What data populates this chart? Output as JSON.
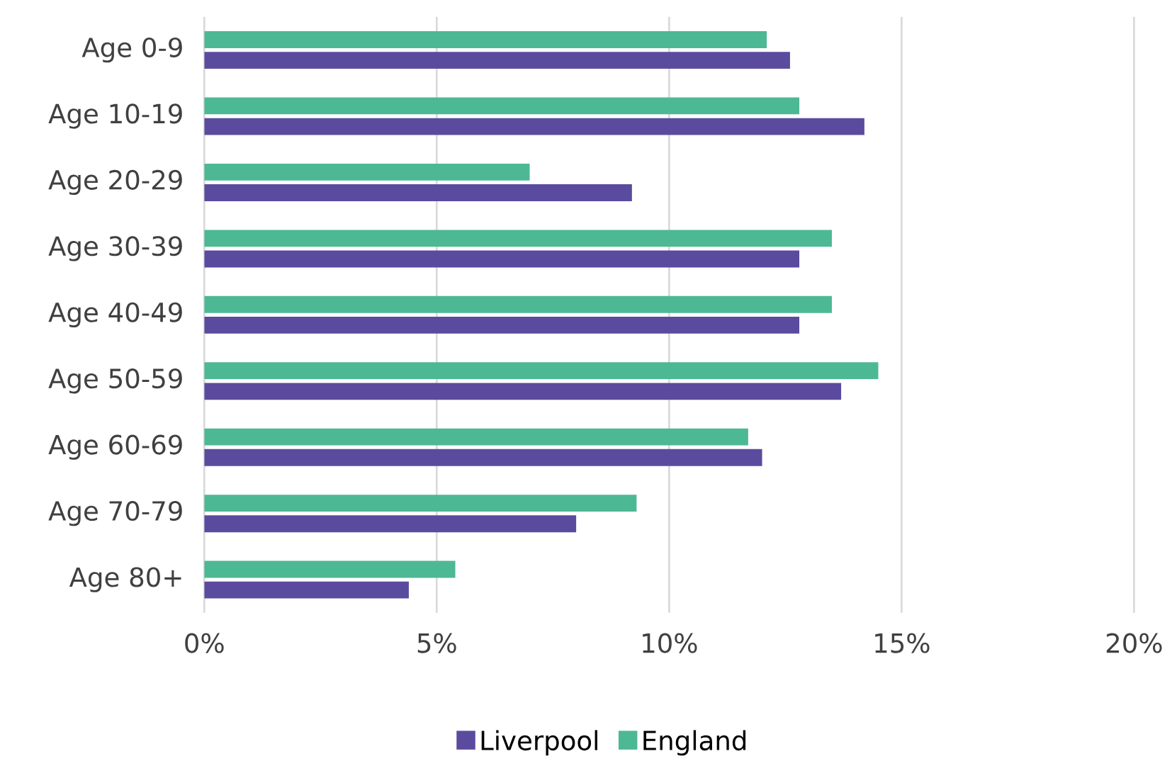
{
  "chart_data": {
    "type": "bar",
    "orientation": "horizontal",
    "categories": [
      "Age 0-9",
      "Age 10-19",
      "Age 20-29",
      "Age 30-39",
      "Age 40-49",
      "Age 50-59",
      "Age 60-69",
      "Age 70-79",
      "Age 80+"
    ],
    "series": [
      {
        "name": "Liverpool",
        "color": "#5b4b9e",
        "values": [
          12.6,
          14.2,
          9.2,
          12.8,
          12.8,
          13.7,
          12.0,
          8.0,
          4.4
        ]
      },
      {
        "name": "England",
        "color": "#4db894",
        "values": [
          12.1,
          12.8,
          7.0,
          13.5,
          13.5,
          14.5,
          11.7,
          9.3,
          5.4
        ]
      }
    ],
    "xlim": [
      0,
      20
    ],
    "xticks": [
      {
        "value": 0,
        "label": "0%"
      },
      {
        "value": 5,
        "label": "5%"
      },
      {
        "value": 10,
        "label": "10%"
      },
      {
        "value": 15,
        "label": "15%"
      },
      {
        "value": 20,
        "label": "20%"
      }
    ],
    "grid": "x",
    "legend": "bottom"
  }
}
